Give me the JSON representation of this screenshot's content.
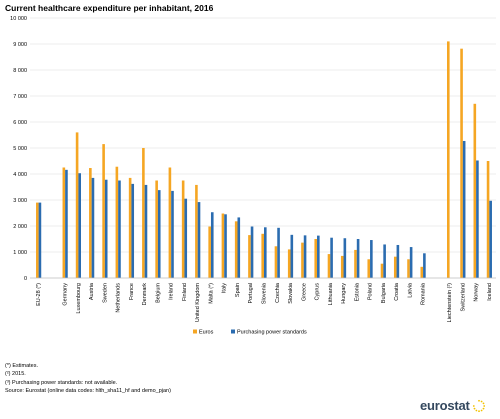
{
  "title": "Current healthcare expenditure per inhabitant, 2016",
  "notes": [
    "(*) Estimates.",
    "(²) 2015.",
    "(³) Purchasing power standards: not available.",
    "Source: Eurostat (online data codes: hlth_sha11_hf and demo_pjan)"
  ],
  "logo": "eurostat",
  "chart_data": {
    "type": "bar",
    "title": "Current healthcare expenditure per inhabitant, 2016",
    "xlabel": "",
    "ylabel": "",
    "ylim": [
      0,
      10000
    ],
    "yticks": [
      0,
      1000,
      2000,
      3000,
      4000,
      5000,
      6000,
      7000,
      8000,
      9000,
      10000
    ],
    "ytick_labels": [
      "0",
      "1 000",
      "2 000",
      "3 000",
      "4 000",
      "5 000",
      "6 000",
      "7 000",
      "8 000",
      "9 000",
      "10 000"
    ],
    "grid": true,
    "legend_position": "bottom",
    "categories": [
      "EU-28 (*)",
      "",
      "Germany",
      "Luxembourg",
      "Austria",
      "Sweden",
      "Netherlands",
      "France",
      "Denmark",
      "Belgium",
      "Ireland",
      "Finland",
      "United Kingdom",
      "Malta (*)",
      "Italy",
      "Spain",
      "Portugal",
      "Slovenia",
      "Czechia",
      "Slovakia",
      "Greece",
      "Cyprus",
      "Lithuania",
      "Hungary",
      "Estonia",
      "Poland",
      "Bulgaria",
      "Croatia",
      "Latvia",
      "Romania",
      "",
      "Liechtenstein (²)",
      "Switzerland",
      "Norway",
      "Iceland"
    ],
    "series": [
      {
        "name": "Euros",
        "color": "#f5a623",
        "values": [
          2900,
          null,
          4250,
          5600,
          4230,
          5150,
          4280,
          3850,
          5000,
          3750,
          4250,
          3750,
          3580,
          1980,
          2480,
          2180,
          1650,
          1700,
          1220,
          1100,
          1360,
          1500,
          920,
          850,
          1080,
          720,
          550,
          820,
          720,
          430,
          null,
          9100,
          8820,
          6700,
          4500
        ]
      },
      {
        "name": "Purchasing power standards",
        "color": "#2b6cb0",
        "values": [
          2900,
          null,
          4160,
          4030,
          3850,
          3780,
          3750,
          3620,
          3580,
          3380,
          3350,
          3050,
          2920,
          2530,
          2450,
          2330,
          1980,
          1950,
          1930,
          1660,
          1640,
          1630,
          1550,
          1530,
          1500,
          1460,
          1290,
          1270,
          1190,
          950,
          null,
          null,
          5270,
          4520,
          2970
        ]
      }
    ]
  }
}
